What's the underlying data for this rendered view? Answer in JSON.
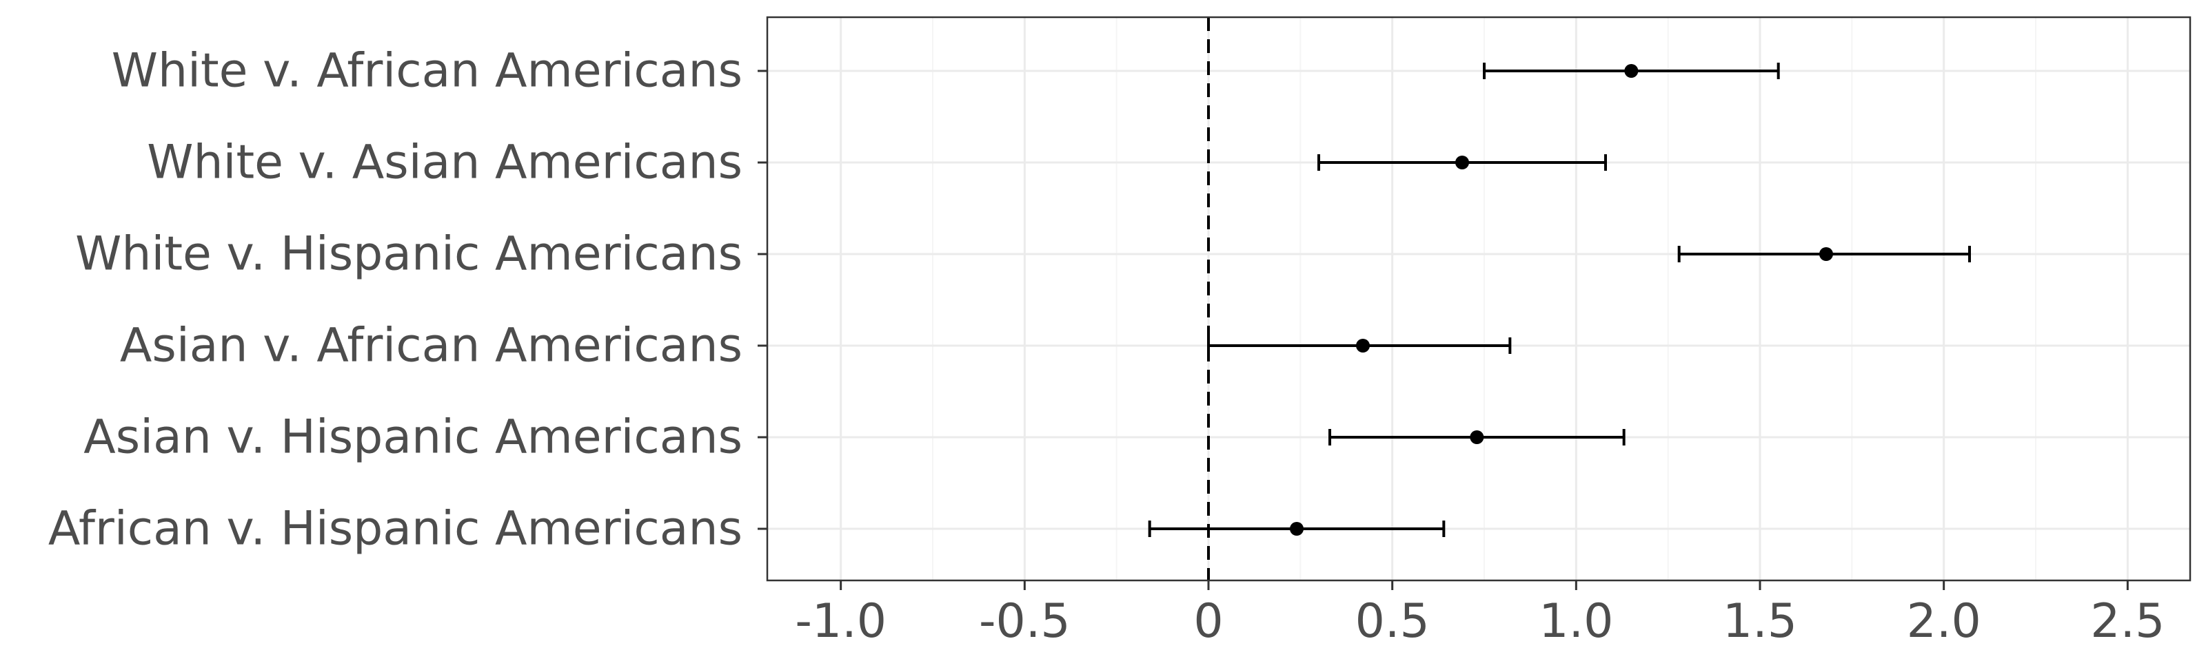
{
  "chart_data": {
    "type": "dot-errorbar",
    "orientation": "horizontal",
    "categories": [
      "White v. African Americans",
      "White v. Asian Americans",
      "White v. Hispanic Americans",
      "Asian v. African Americans",
      "Asian v. Hispanic Americans",
      "African v. Hispanic Americans"
    ],
    "estimates": [
      1.15,
      0.69,
      1.68,
      0.42,
      0.73,
      0.24
    ],
    "lower": [
      0.75,
      0.3,
      1.28,
      0.0,
      0.33,
      -0.16
    ],
    "upper": [
      1.55,
      1.08,
      2.07,
      0.82,
      1.13,
      0.64
    ],
    "xlim": [
      -1.2,
      2.67
    ],
    "xticks": [
      -1.0,
      -0.5,
      0,
      0.5,
      1.0,
      1.5,
      2.0,
      2.5
    ],
    "xtick_labels": [
      "-1.0",
      "-0.5",
      "0",
      "0.5",
      "1.0",
      "1.5",
      "2.0",
      "2.5"
    ],
    "reference_line": 0,
    "xlabel": "",
    "ylabel": "",
    "title": "",
    "grid": true,
    "colors": {
      "point": "#000000",
      "errorbar": "#000000",
      "reference": "#000000",
      "grid_major": "#ebebeb",
      "grid_minor": "#f5f5f5",
      "panel_border": "#333333",
      "text": "#4d4d4d"
    }
  }
}
